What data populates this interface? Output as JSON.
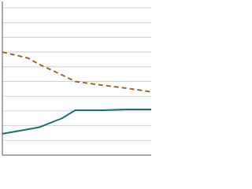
{
  "chart_data": {
    "type": "line",
    "x": [
      0,
      1.7,
      2.5,
      4,
      4.9,
      6.7,
      8.3,
      10
    ],
    "xlim": [
      0,
      10
    ],
    "ylim": [
      0,
      10
    ],
    "yticks": [
      0,
      1,
      2,
      3,
      4,
      5,
      6,
      7,
      8,
      9,
      10
    ],
    "grid": true,
    "series": [
      {
        "color": "#9c6a2e",
        "line_style": "dashed",
        "values": [
          7.0,
          6.6,
          6.15,
          5.45,
          5.0,
          4.75,
          4.55,
          4.3
        ]
      },
      {
        "color": "#1f6e69",
        "line_style": "solid",
        "values": [
          1.45,
          1.75,
          1.9,
          2.5,
          3.05,
          3.05,
          3.1,
          3.1
        ]
      }
    ]
  }
}
